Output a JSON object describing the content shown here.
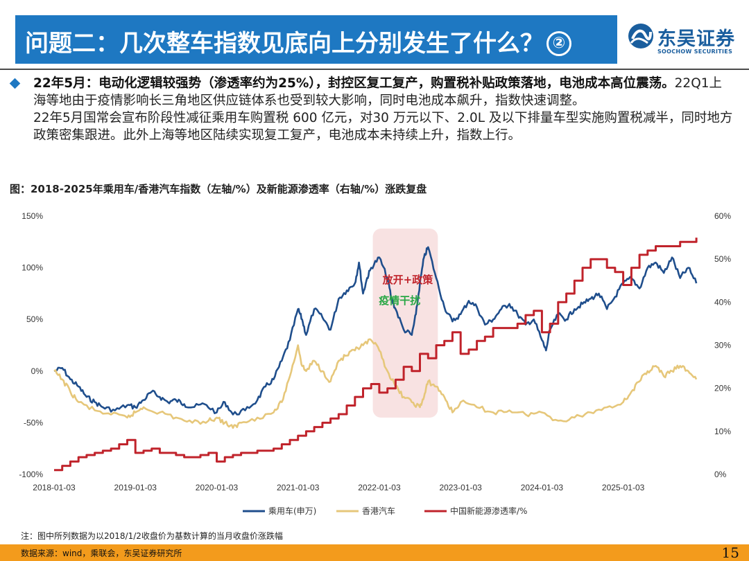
{
  "header": {
    "title": "问题二：几次整车指数见底向上分别发生了什么？",
    "title_badge": "②",
    "logo_cn": "东吴证券",
    "logo_en": "SOOCHOW SECURITIES"
  },
  "body": {
    "lead": "22年5月：电动化逻辑较强势（渗透率约为25%），封控区复工复产，购置税补贴政策落地，电池成本高位震荡。",
    "text1": "22Q1上海等地由于疫情影响长三角地区供应链体系也受到较大影响，同时电池成本飙升，指数快速调整。",
    "text2": "22年5月国常会宣布阶段性减征乘用车购置税 600 亿元，对30 万元以下、2.0L 及以下排量车型实施购置税减半，同时地方政策密集跟进。此外上海等地区陆续实现复工复产，电池成本未持续上升，指数上行。"
  },
  "chart_data": {
    "type": "line",
    "title": "图：2018-2025年乘用车/香港汽车指数（左轴/%）及新能源渗透率（右轴/%）涨跌复盘",
    "x_ticks": [
      "2018-01-03",
      "2019-01-03",
      "2020-01-03",
      "2021-01-03",
      "2022-01-03",
      "2023-01-03",
      "2024-01-03",
      "2025-01-03"
    ],
    "x_range": [
      2018.0,
      2025.95
    ],
    "y_left": {
      "ticks": [
        "150%",
        "100%",
        "50%",
        "0%",
        "-50%",
        "-100%"
      ],
      "range": [
        -100,
        150
      ]
    },
    "y_right": {
      "ticks": [
        "60%",
        "50%",
        "40%",
        "30%",
        "20%",
        "10%",
        "0%"
      ],
      "range": [
        0,
        60
      ]
    },
    "highlight_range": [
      2021.92,
      2022.72
    ],
    "annotations": [
      {
        "text": "放开+政策",
        "color": "#c0232b",
        "x": 2022.35,
        "y": 85
      },
      {
        "text": "疫情干扰",
        "color": "#28a745",
        "x": 2022.25,
        "y": 65
      }
    ],
    "series": [
      {
        "name": "乘用车(申万)",
        "axis": "left",
        "color": "#1f4e8c",
        "x": [
          2018.0,
          2018.1,
          2018.2,
          2018.3,
          2018.4,
          2018.5,
          2018.6,
          2018.75,
          2018.9,
          2019.0,
          2019.1,
          2019.2,
          2019.3,
          2019.4,
          2019.5,
          2019.6,
          2019.7,
          2019.85,
          2020.0,
          2020.1,
          2020.2,
          2020.35,
          2020.5,
          2020.6,
          2020.7,
          2020.8,
          2020.9,
          2021.0,
          2021.05,
          2021.1,
          2021.2,
          2021.3,
          2021.4,
          2021.5,
          2021.6,
          2021.7,
          2021.75,
          2021.8,
          2021.85,
          2021.9,
          2022.0,
          2022.1,
          2022.15,
          2022.2,
          2022.3,
          2022.4,
          2022.45,
          2022.5,
          2022.55,
          2022.6,
          2022.7,
          2022.8,
          2022.9,
          2023.0,
          2023.1,
          2023.2,
          2023.3,
          2023.4,
          2023.5,
          2023.6,
          2023.7,
          2023.8,
          2023.9,
          2024.0,
          2024.05,
          2024.1,
          2024.2,
          2024.3,
          2024.4,
          2024.5,
          2024.6,
          2024.7,
          2024.8,
          2024.9,
          2025.0,
          2025.1,
          2025.2,
          2025.3,
          2025.4,
          2025.5,
          2025.6,
          2025.7,
          2025.8,
          2025.9
        ],
        "y": [
          0,
          3,
          -8,
          -15,
          -25,
          -30,
          -35,
          -38,
          -33,
          -35,
          -28,
          -20,
          -25,
          -30,
          -28,
          -32,
          -35,
          -32,
          -40,
          -30,
          -42,
          -38,
          -28,
          -15,
          -8,
          10,
          30,
          60,
          50,
          35,
          60,
          52,
          40,
          70,
          78,
          85,
          105,
          75,
          90,
          100,
          110,
          90,
          70,
          60,
          40,
          35,
          55,
          85,
          110,
          120,
          90,
          62,
          48,
          55,
          68,
          62,
          45,
          50,
          60,
          65,
          55,
          45,
          50,
          30,
          20,
          40,
          55,
          50,
          60,
          65,
          70,
          75,
          60,
          72,
          85,
          90,
          80,
          100,
          105,
          95,
          110,
          90,
          100,
          85
        ]
      },
      {
        "name": "香港汽车",
        "axis": "left",
        "color": "#e6c77a",
        "x": [
          2018.0,
          2018.1,
          2018.2,
          2018.3,
          2018.5,
          2018.7,
          2018.9,
          2019.0,
          2019.1,
          2019.3,
          2019.5,
          2019.7,
          2019.9,
          2020.0,
          2020.1,
          2020.2,
          2020.3,
          2020.5,
          2020.7,
          2020.8,
          2020.9,
          2021.0,
          2021.05,
          2021.1,
          2021.2,
          2021.3,
          2021.4,
          2021.5,
          2021.6,
          2021.7,
          2021.8,
          2021.9,
          2022.0,
          2022.1,
          2022.2,
          2022.3,
          2022.4,
          2022.5,
          2022.55,
          2022.6,
          2022.7,
          2022.8,
          2022.9,
          2023.0,
          2023.2,
          2023.4,
          2023.6,
          2023.8,
          2024.0,
          2024.2,
          2024.4,
          2024.6,
          2024.8,
          2025.0,
          2025.1,
          2025.2,
          2025.3,
          2025.4,
          2025.5,
          2025.6,
          2025.7,
          2025.8,
          2025.9
        ],
        "y": [
          0,
          -8,
          -20,
          -30,
          -38,
          -42,
          -45,
          -40,
          -35,
          -40,
          -45,
          -50,
          -48,
          -45,
          -50,
          -55,
          -50,
          -45,
          -40,
          -30,
          -5,
          25,
          5,
          0,
          10,
          0,
          -10,
          10,
          15,
          20,
          25,
          30,
          20,
          0,
          -15,
          -25,
          -30,
          -35,
          -25,
          -10,
          -15,
          -25,
          -40,
          -30,
          -35,
          -40,
          -38,
          -42,
          -40,
          -48,
          -45,
          -40,
          -35,
          -30,
          -20,
          -10,
          0,
          5,
          -5,
          0,
          5,
          0,
          -8
        ]
      },
      {
        "name": "中国新能源渗透率/%",
        "axis": "right",
        "color": "#c0232b",
        "step": true,
        "x": [
          2018.0,
          2018.1,
          2018.2,
          2018.3,
          2018.4,
          2018.5,
          2018.6,
          2018.7,
          2018.8,
          2018.9,
          2019.0,
          2019.1,
          2019.2,
          2019.3,
          2019.4,
          2019.5,
          2019.6,
          2019.7,
          2019.8,
          2019.9,
          2020.0,
          2020.1,
          2020.2,
          2020.3,
          2020.4,
          2020.5,
          2020.6,
          2020.7,
          2020.8,
          2020.9,
          2021.0,
          2021.1,
          2021.2,
          2021.3,
          2021.4,
          2021.5,
          2021.6,
          2021.7,
          2021.8,
          2021.9,
          2022.0,
          2022.1,
          2022.2,
          2022.3,
          2022.4,
          2022.5,
          2022.6,
          2022.7,
          2022.8,
          2022.9,
          2023.0,
          2023.1,
          2023.2,
          2023.3,
          2023.4,
          2023.5,
          2023.6,
          2023.7,
          2023.8,
          2023.9,
          2024.0,
          2024.1,
          2024.2,
          2024.3,
          2024.4,
          2024.5,
          2024.6,
          2024.7,
          2024.8,
          2024.9,
          2025.0,
          2025.1,
          2025.2,
          2025.3,
          2025.4,
          2025.5,
          2025.6,
          2025.7,
          2025.8,
          2025.9
        ],
        "y": [
          1,
          2,
          3,
          4,
          4.5,
          5,
          5.5,
          6,
          7,
          8,
          5,
          5.5,
          6,
          5,
          5,
          4.5,
          4,
          4,
          4.5,
          5,
          3,
          4,
          4.5,
          5,
          5,
          5.5,
          5.5,
          6,
          7,
          8,
          9,
          10,
          11,
          12,
          13,
          14,
          16,
          18,
          20,
          21,
          19,
          20,
          22,
          25,
          24,
          28,
          27,
          30,
          31,
          33,
          28,
          29,
          31,
          32,
          34,
          34,
          34,
          35,
          37,
          38,
          33,
          35,
          40,
          42,
          45,
          48,
          50,
          50,
          48,
          47,
          44,
          48,
          51,
          52,
          53,
          53,
          53,
          54,
          54,
          55
        ]
      }
    ],
    "legend": [
      "乘用车(申万)",
      "香港汽车",
      "中国新能源渗透率/%"
    ]
  },
  "footer": {
    "note": "注：图中所列数据为以2018/1/2收盘价为基数计算的当月收盘价涨跌幅",
    "source": "数据来源：wind，乘联会，东吴证券研究所",
    "page": "15"
  }
}
